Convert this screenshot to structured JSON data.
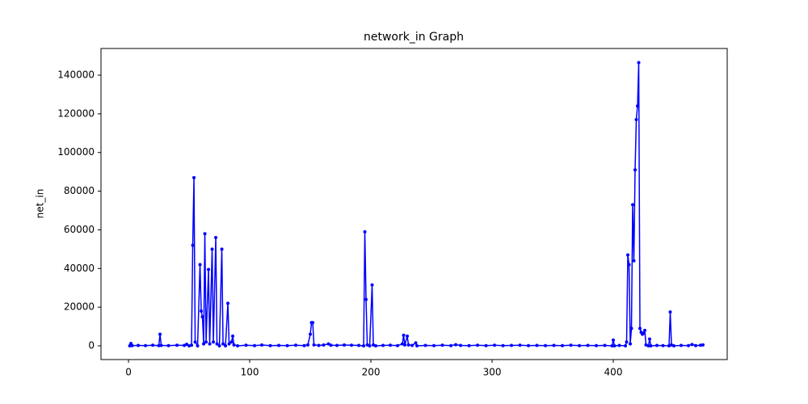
{
  "chart_data": {
    "type": "line",
    "title": "network_in Graph",
    "y_label": "net_in",
    "x": [
      1,
      2,
      3,
      8,
      14,
      20,
      25,
      26,
      27,
      33,
      40,
      46,
      48,
      50,
      52,
      53,
      54,
      55,
      57,
      59,
      60,
      61,
      62,
      63,
      64,
      66,
      67,
      69,
      70,
      72,
      73,
      75,
      77,
      78,
      80,
      82,
      83,
      85,
      86,
      87,
      90,
      97,
      104,
      110,
      117,
      124,
      131,
      138,
      145,
      148,
      150,
      151,
      152,
      153,
      157,
      161,
      165,
      167,
      172,
      178,
      184,
      190,
      194,
      195,
      196,
      197,
      199,
      201,
      202,
      204,
      210,
      216,
      222,
      226,
      227,
      228,
      230,
      231,
      234,
      237,
      238,
      245,
      252,
      259,
      266,
      270,
      274,
      281,
      288,
      295,
      302,
      309,
      316,
      323,
      330,
      337,
      344,
      351,
      358,
      365,
      372,
      379,
      386,
      393,
      399,
      400,
      401,
      405,
      410,
      411,
      412,
      413,
      414,
      415,
      416,
      417,
      418,
      419,
      420,
      421,
      422,
      423,
      424,
      425,
      426,
      427,
      429,
      430,
      431,
      436,
      441,
      446,
      447,
      448,
      450,
      456,
      462,
      465,
      468,
      472,
      474
    ],
    "series": [
      {
        "color": "#0000ff",
        "values": [
          0,
          1200,
          100,
          200,
          100,
          300,
          100,
          6000,
          200,
          100,
          300,
          200,
          800,
          0,
          300,
          52000,
          87000,
          2000,
          0,
          42000,
          18000,
          15000,
          1000,
          58000,
          2000,
          39500,
          1000,
          50000,
          2000,
          56000,
          1000,
          0,
          50000,
          1000,
          0,
          22000,
          1000,
          2000,
          5000,
          500,
          0,
          300,
          100,
          400,
          100,
          200,
          100,
          300,
          100,
          500,
          6000,
          12000,
          12000,
          500,
          200,
          400,
          1000,
          300,
          200,
          400,
          300,
          200,
          0,
          59000,
          24000,
          500,
          0,
          31500,
          500,
          0,
          200,
          300,
          100,
          1000,
          5500,
          500,
          5000,
          500,
          200,
          1500,
          0,
          200,
          100,
          300,
          100,
          600,
          200,
          100,
          300,
          100,
          300,
          100,
          200,
          300,
          100,
          200,
          100,
          200,
          100,
          300,
          100,
          200,
          100,
          200,
          0,
          3000,
          0,
          200,
          0,
          2000,
          47000,
          42000,
          1000,
          9000,
          73000,
          44000,
          91000,
          117000,
          124000,
          146500,
          9000,
          7000,
          6000,
          6500,
          8000,
          500,
          0,
          3500,
          0,
          200,
          100,
          0,
          17500,
          500,
          0,
          200,
          100,
          700,
          100,
          300,
          500
        ]
      }
    ],
    "xlim": [
      -22.7,
      494.0
    ],
    "ylim": [
      -7100,
      153800
    ],
    "xticks": [
      0,
      100,
      200,
      300,
      400
    ],
    "yticks": [
      0,
      20000,
      40000,
      60000,
      80000,
      100000,
      120000,
      140000
    ]
  }
}
